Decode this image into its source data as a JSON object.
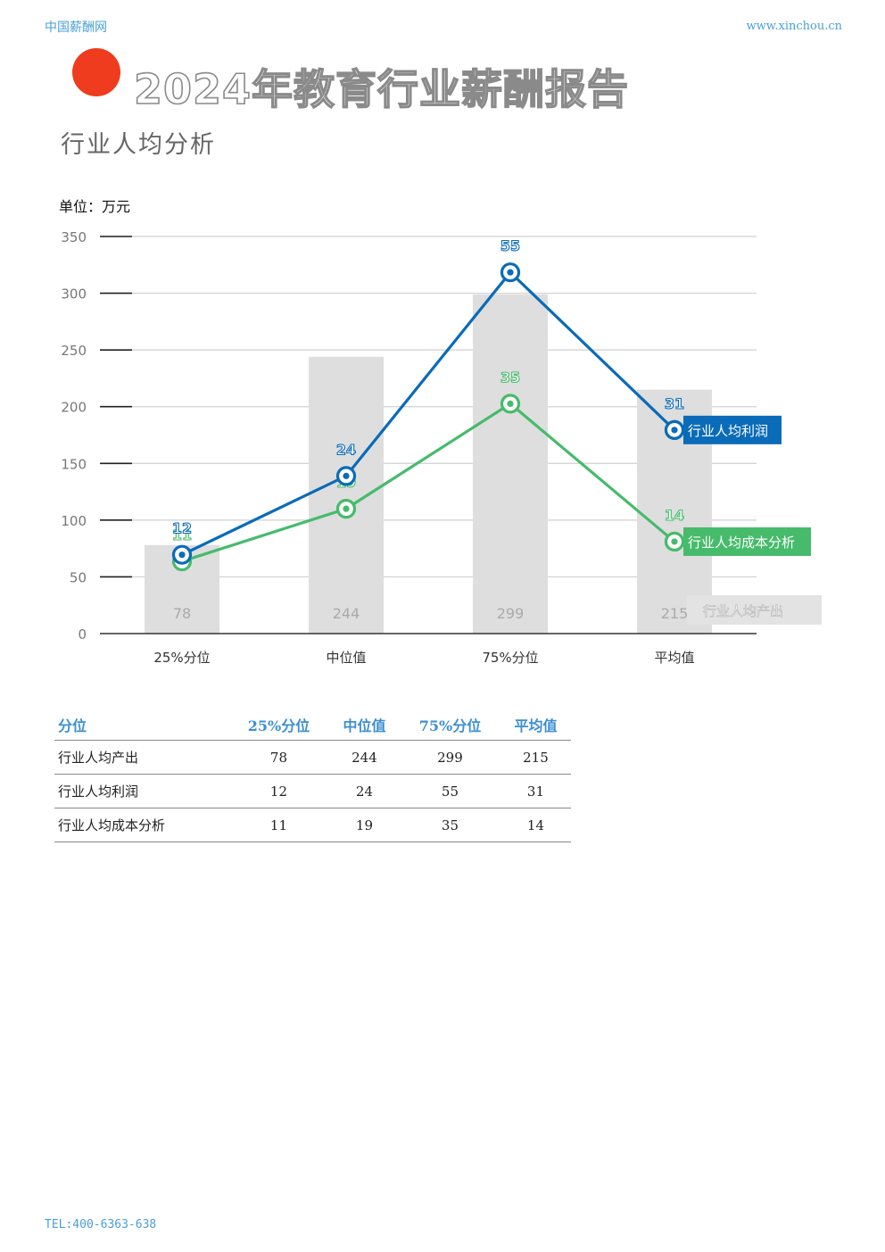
{
  "header": {
    "brand": "中国薪酬网",
    "website": "www.xinchou.cn"
  },
  "report_title": "2024年教育行业薪酬报告",
  "section_title": "行业人均分析",
  "unit_label": "单位：万元",
  "colors": {
    "accent_red": "#ef3b1e",
    "profit_blue": "#0a6bb8",
    "cost_green": "#46bb6b",
    "output_gray": "#dedede"
  },
  "chart_data": {
    "type": "bar",
    "categories": [
      "25%分位",
      "中位值",
      "75%分位",
      "平均值"
    ],
    "ylim": [
      0,
      350
    ],
    "yticks": [
      0,
      50,
      100,
      150,
      200,
      250,
      300,
      350
    ],
    "grid": true,
    "series": [
      {
        "name": "行业人均产出",
        "type": "bar",
        "color": "#dedede",
        "values": [
          78,
          244,
          299,
          215
        ]
      },
      {
        "name": "行业人均利润",
        "type": "line",
        "color": "#0a6bb8",
        "values": [
          12,
          24,
          55,
          31
        ]
      },
      {
        "name": "行业人均成本分析",
        "type": "line",
        "color": "#46bb6b",
        "values": [
          11,
          19,
          35,
          14
        ]
      }
    ]
  },
  "table": {
    "header": [
      "分位",
      "25%分位",
      "中位值",
      "75%分位",
      "平均值"
    ],
    "rows": [
      [
        "行业人均产出",
        "78",
        "244",
        "299",
        "215"
      ],
      [
        "行业人均利润",
        "12",
        "24",
        "55",
        "31"
      ],
      [
        "行业人均成本分析",
        "11",
        "19",
        "35",
        "14"
      ]
    ]
  },
  "footer": {
    "tel": "TEL:400-6363-638"
  }
}
